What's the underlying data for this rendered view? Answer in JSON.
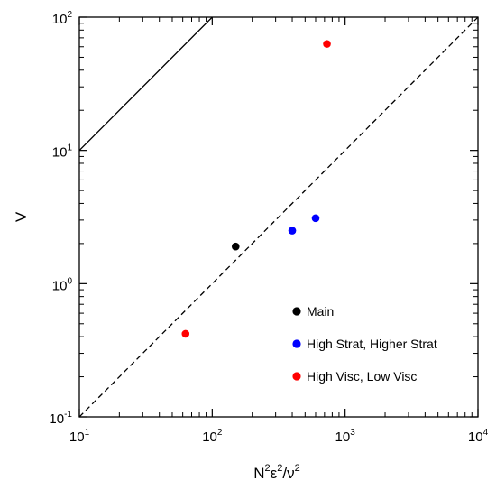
{
  "chart_data": {
    "type": "scatter",
    "xscale": "log",
    "yscale": "log",
    "xlim": [
      10,
      10000
    ],
    "ylim": [
      0.1,
      100
    ],
    "grid": false,
    "legend_position": "bottom-right",
    "xlabel": {
      "parts": [
        {
          "t": "N",
          "sup": false
        },
        {
          "t": "2",
          "sup": true
        },
        {
          "t": "ε",
          "sup": false
        },
        {
          "t": "2",
          "sup": true
        },
        {
          "t": "/ν",
          "sup": false
        },
        {
          "t": "2",
          "sup": true
        }
      ]
    },
    "ylabel": "V",
    "x_ticks": [
      {
        "base": "10",
        "exp": "1",
        "value": 10
      },
      {
        "base": "10",
        "exp": "2",
        "value": 100
      },
      {
        "base": "10",
        "exp": "3",
        "value": 1000
      },
      {
        "base": "10",
        "exp": "4",
        "value": 10000
      }
    ],
    "y_ticks": [
      {
        "base": "10",
        "exp": "-1",
        "value": 0.1
      },
      {
        "base": "10",
        "exp": "0",
        "value": 1
      },
      {
        "base": "10",
        "exp": "1",
        "value": 10
      },
      {
        "base": "10",
        "exp": "2",
        "value": 100
      }
    ],
    "lines": [
      {
        "style": "solid",
        "color": "#000000",
        "x": [
          10,
          100
        ],
        "y": [
          10,
          100
        ]
      },
      {
        "style": "dashed",
        "color": "#000000",
        "x": [
          10,
          10000
        ],
        "y": [
          0.1,
          100
        ]
      }
    ],
    "series": [
      {
        "name": "Main",
        "color": "#000000",
        "x": [
          150
        ],
        "y": [
          1.9
        ]
      },
      {
        "name": "High Strat, Higher Strat",
        "color": "#0000ff",
        "x": [
          400,
          600
        ],
        "y": [
          2.5,
          3.1
        ]
      },
      {
        "name": "High Visc, Low Visc",
        "color": "#ff0000",
        "x": [
          63,
          730
        ],
        "y": [
          0.42,
          63
        ]
      }
    ]
  }
}
